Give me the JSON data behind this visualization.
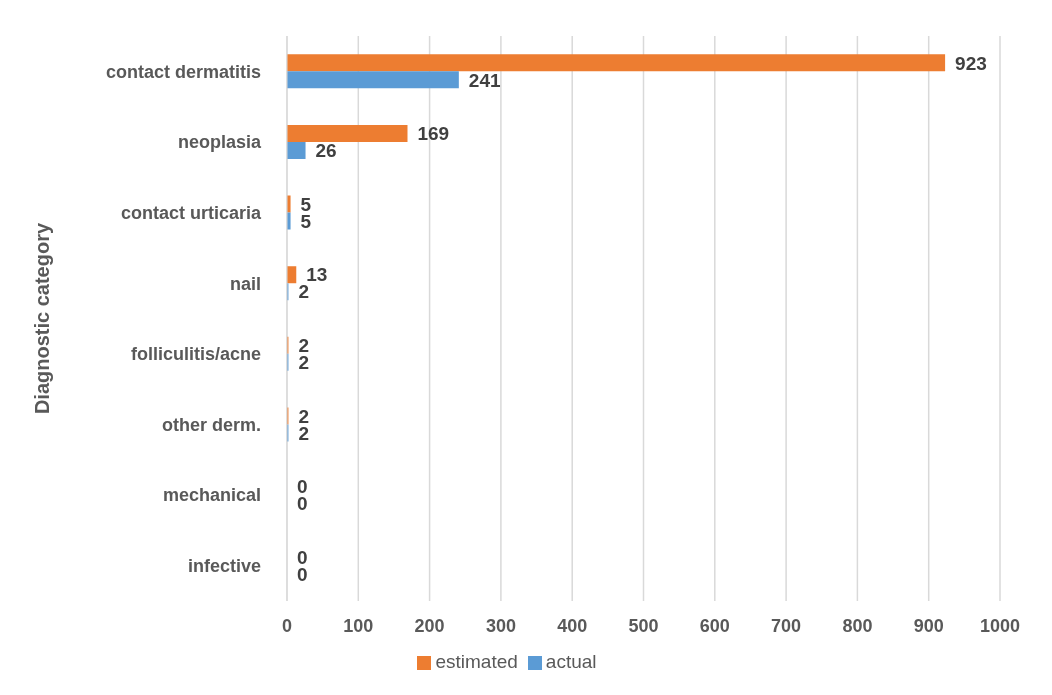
{
  "chart_data": {
    "type": "bar",
    "orientation": "horizontal",
    "ylabel": "Diagnostic category",
    "categories": [
      "contact dermatitis",
      "neoplasia",
      "contact urticaria",
      "nail",
      "folliculitis/acne",
      "other derm.",
      "mechanical",
      "infective"
    ],
    "series": [
      {
        "name": "estimated",
        "color": "#ed7d31",
        "values": [
          923,
          169,
          5,
          13,
          2,
          2,
          0,
          0
        ]
      },
      {
        "name": "actual",
        "color": "#5b9bd5",
        "values": [
          241,
          26,
          5,
          2,
          2,
          2,
          0,
          0
        ]
      }
    ],
    "xlim": [
      0,
      1000
    ],
    "xticks": [
      0,
      100,
      200,
      300,
      400,
      500,
      600,
      700,
      800,
      900,
      1000
    ],
    "grid": "x",
    "legend": "bottom",
    "data_labels": true
  }
}
